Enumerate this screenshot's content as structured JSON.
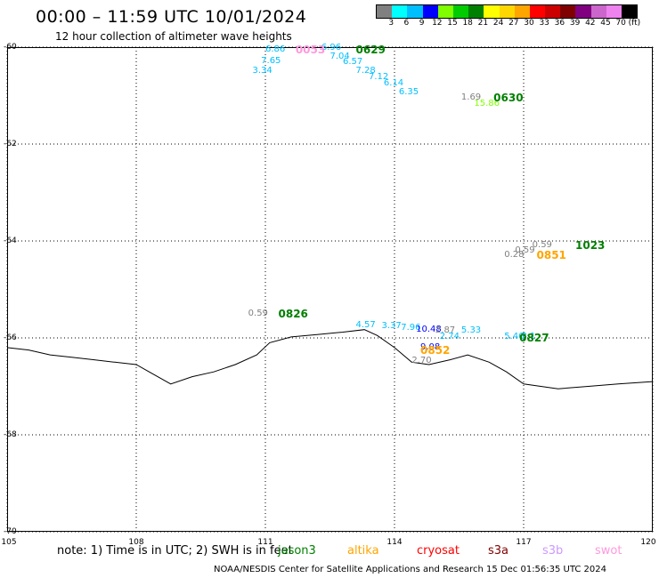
{
  "title": "00:00 – 11:59 UTC 10/01/2024",
  "subtitle": "12 hour collection of altimeter wave heights",
  "legend": {
    "colors": [
      "#808080",
      "#00ffff",
      "#00bfff",
      "#0000ff",
      "#7fff00",
      "#00cc00",
      "#008000",
      "#ffff00",
      "#ffd700",
      "#ffa500",
      "#ff0000",
      "#cc0000",
      "#800000",
      "#800080",
      "#cc66cc",
      "#ee82ee",
      "#000000"
    ],
    "labels": [
      "3",
      "6",
      "9",
      "12",
      "15",
      "18",
      "21",
      "24",
      "27",
      "30",
      "33",
      "36",
      "39",
      "42",
      "45",
      "70",
      "(ft)"
    ]
  },
  "map": {
    "lon_range": [
      105,
      120
    ],
    "lat_range": [
      -70,
      -60
    ],
    "lat_ticks": [
      "-60",
      "-62",
      "-64",
      "-66",
      "-68",
      "-70"
    ],
    "lon_ticks": [
      "105",
      "108",
      "111",
      "114",
      "117",
      "120"
    ],
    "coastline": [
      [
        105,
        -66.2
      ],
      [
        105.5,
        -66.25
      ],
      [
        106,
        -66.35
      ],
      [
        106.5,
        -66.4
      ],
      [
        107,
        -66.45
      ],
      [
        107.5,
        -66.5
      ],
      [
        108,
        -66.55
      ],
      [
        108.3,
        -66.7
      ],
      [
        108.8,
        -66.95
      ],
      [
        109.3,
        -66.8
      ],
      [
        109.8,
        -66.7
      ],
      [
        110.3,
        -66.55
      ],
      [
        110.8,
        -66.35
      ],
      [
        111.1,
        -66.1
      ],
      [
        111.6,
        -65.98
      ],
      [
        112.2,
        -65.93
      ],
      [
        112.8,
        -65.88
      ],
      [
        113.3,
        -65.83
      ],
      [
        113.6,
        -65.95
      ],
      [
        114.0,
        -66.2
      ],
      [
        114.4,
        -66.5
      ],
      [
        114.8,
        -66.55
      ],
      [
        115.3,
        -66.45
      ],
      [
        115.7,
        -66.35
      ],
      [
        116.2,
        -66.5
      ],
      [
        116.6,
        -66.7
      ],
      [
        117.0,
        -66.95
      ],
      [
        117.8,
        -67.05
      ],
      [
        118.5,
        -67.0
      ],
      [
        119.2,
        -66.95
      ],
      [
        120,
        -66.9
      ]
    ],
    "passes": [
      {
        "id": "0053",
        "color": "#ff99dd",
        "lon": 111.7,
        "lat": -60.05
      },
      {
        "id": "0629",
        "color": "#008000",
        "lon": 113.1,
        "lat": -60.05
      },
      {
        "id": "0630",
        "color": "#008000",
        "lon": 116.3,
        "lat": -61.05
      },
      {
        "id": "1023",
        "color": "#008000",
        "lon": 118.2,
        "lat": -64.1
      },
      {
        "id": "0851",
        "color": "#ffa500",
        "lon": 117.3,
        "lat": -64.3
      },
      {
        "id": "0826",
        "color": "#008000",
        "lon": 111.3,
        "lat": -65.5
      },
      {
        "id": "0852",
        "color": "#ffa500",
        "lon": 114.6,
        "lat": -66.25
      },
      {
        "id": "0827",
        "color": "#008000",
        "lon": 116.9,
        "lat": -66.0
      }
    ],
    "values": [
      {
        "text": "6.86",
        "color": "#00bfff",
        "lon": 111.0,
        "lat": -60.05
      },
      {
        "text": "6.96",
        "color": "#00bfff",
        "lon": 112.3,
        "lat": -60.02
      },
      {
        "text": "7.65",
        "color": "#00bfff",
        "lon": 110.9,
        "lat": -60.3
      },
      {
        "text": "7.04",
        "color": "#00bfff",
        "lon": 112.5,
        "lat": -60.2
      },
      {
        "text": "6.57",
        "color": "#00bfff",
        "lon": 112.8,
        "lat": -60.32
      },
      {
        "text": "3.34",
        "color": "#00bfff",
        "lon": 110.7,
        "lat": -60.5
      },
      {
        "text": "7.28",
        "color": "#00bfff",
        "lon": 113.1,
        "lat": -60.5
      },
      {
        "text": "7.12",
        "color": "#00bfff",
        "lon": 113.4,
        "lat": -60.62
      },
      {
        "text": "6.14",
        "color": "#00bfff",
        "lon": 113.75,
        "lat": -60.75
      },
      {
        "text": "6.35",
        "color": "#00bfff",
        "lon": 114.1,
        "lat": -60.93
      },
      {
        "text": "1.69",
        "color": "#808080",
        "lon": 115.55,
        "lat": -61.05
      },
      {
        "text": "15.86",
        "color": "#7fff00",
        "lon": 115.85,
        "lat": -61.18
      },
      {
        "text": "0.59",
        "color": "#808080",
        "lon": 117.2,
        "lat": -64.1
      },
      {
        "text": "0.59",
        "color": "#808080",
        "lon": 116.8,
        "lat": -64.2
      },
      {
        "text": "0.28",
        "color": "#808080",
        "lon": 116.55,
        "lat": -64.3
      },
      {
        "text": "0.59",
        "color": "#808080",
        "lon": 110.6,
        "lat": -65.5
      },
      {
        "text": "4.57",
        "color": "#00bfff",
        "lon": 113.1,
        "lat": -65.75
      },
      {
        "text": "3.37",
        "color": "#00bfff",
        "lon": 113.7,
        "lat": -65.77
      },
      {
        "text": "7.96",
        "color": "#00bfff",
        "lon": 114.15,
        "lat": -65.8
      },
      {
        "text": "10.48",
        "color": "#0000ff",
        "lon": 114.5,
        "lat": -65.83
      },
      {
        "text": "2.87",
        "color": "#808080",
        "lon": 114.95,
        "lat": -65.85
      },
      {
        "text": "5.33",
        "color": "#00bfff",
        "lon": 115.55,
        "lat": -65.85
      },
      {
        "text": "2.74",
        "color": "#00bfff",
        "lon": 115.05,
        "lat": -65.98
      },
      {
        "text": "9.08",
        "color": "#0000ff",
        "lon": 114.6,
        "lat": -66.2
      },
      {
        "text": "2.70",
        "color": "#808080",
        "lon": 114.4,
        "lat": -66.47
      },
      {
        "text": "5.46",
        "color": "#00bfff",
        "lon": 116.55,
        "lat": -65.98
      },
      {
        "text": "3.1",
        "color": "#00bfff",
        "lon": 116.95,
        "lat": -65.98
      }
    ]
  },
  "footer": {
    "note": "note: 1) Time is in UTC; 2) SWH is in feet",
    "satellites": [
      {
        "name": "jason3",
        "color": "#008000"
      },
      {
        "name": "altika",
        "color": "#ffa500"
      },
      {
        "name": "cryosat",
        "color": "#ff0000"
      },
      {
        "name": "s3a",
        "color": "#800000"
      },
      {
        "name": "s3b",
        "color": "#cc99ff"
      },
      {
        "name": "swot",
        "color": "#ff99dd"
      }
    ],
    "credit": "NOAA/NESDIS Center for Satellite Applications and Research    15 Dec 01:56:35 UTC 2024"
  }
}
